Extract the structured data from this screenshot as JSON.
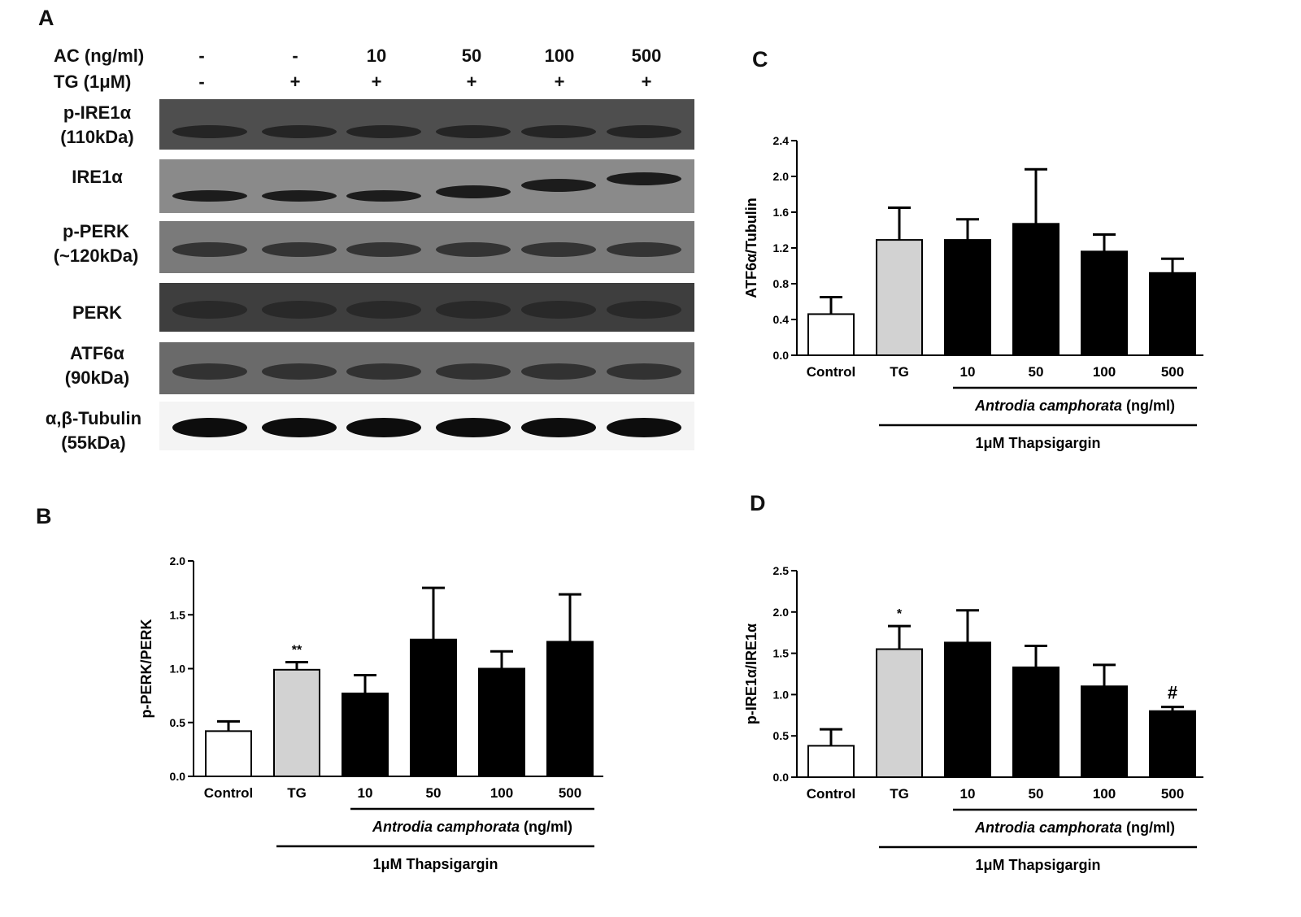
{
  "panels": {
    "a": "A",
    "b": "B",
    "c": "C",
    "d": "D"
  },
  "blot": {
    "ac_label": "AC (ng/ml)",
    "tg_label": "TG  (1μM)",
    "ac_values": [
      "-",
      "-",
      "10",
      "50",
      "100",
      "500"
    ],
    "tg_values": [
      "-",
      "+",
      "+",
      "+",
      "+",
      "+"
    ],
    "rows": [
      {
        "line1": "p-IRE1α",
        "line2": "(110kDa)"
      },
      {
        "line1": "IRE1α",
        "line2": ""
      },
      {
        "line1": "p-PERK",
        "line2": "(~120kDa)"
      },
      {
        "line1": "PERK",
        "line2": ""
      },
      {
        "line1": "ATF6α",
        "line2": "(90kDa)"
      },
      {
        "line1": "α,β-Tubulin",
        "line2": "(55kDa)"
      }
    ]
  },
  "chart_data": [
    {
      "panel": "B",
      "type": "bar",
      "categories": [
        "Control",
        "TG",
        "10",
        "50",
        "100",
        "500"
      ],
      "values": [
        0.42,
        0.99,
        0.77,
        1.27,
        1.0,
        1.25
      ],
      "errors": [
        0.09,
        0.07,
        0.17,
        0.48,
        0.16,
        0.44
      ],
      "bar_colors": [
        "#ffffff",
        "#d2d2d2",
        "#000000",
        "#000000",
        "#000000",
        "#000000"
      ],
      "annotations": [
        "",
        "**",
        "",
        "",
        "",
        ""
      ],
      "ylabel": "p-PERK/PERK",
      "ylim": [
        0,
        2.0
      ],
      "yticks": [
        "0.0",
        "0.5",
        "1.0",
        "1.5",
        "2.0"
      ],
      "group_label_1": "Antrodia camphorata",
      "group_label_1_unit": " (ng/ml)",
      "group_label_2": "1μM Thapsigargin"
    },
    {
      "panel": "C",
      "type": "bar",
      "categories": [
        "Control",
        "TG",
        "10",
        "50",
        "100",
        "500"
      ],
      "values": [
        0.46,
        1.29,
        1.29,
        1.47,
        1.16,
        0.92
      ],
      "errors": [
        0.19,
        0.36,
        0.23,
        0.61,
        0.19,
        0.16
      ],
      "bar_colors": [
        "#ffffff",
        "#d2d2d2",
        "#000000",
        "#000000",
        "#000000",
        "#000000"
      ],
      "annotations": [
        "",
        "",
        "",
        "",
        "",
        ""
      ],
      "ylabel": "ATF6α/Tubulin",
      "ylim": [
        0,
        2.4
      ],
      "yticks": [
        "0.0",
        "0.4",
        "0.8",
        "1.2",
        "1.6",
        "2.0",
        "2.4"
      ],
      "group_label_1": "Antrodia camphorata",
      "group_label_1_unit": " (ng/ml)",
      "group_label_2": "1μM Thapsigargin"
    },
    {
      "panel": "D",
      "type": "bar",
      "categories": [
        "Control",
        "TG",
        "10",
        "50",
        "100",
        "500"
      ],
      "values": [
        0.38,
        1.55,
        1.63,
        1.33,
        1.1,
        0.8
      ],
      "errors": [
        0.2,
        0.28,
        0.39,
        0.26,
        0.26,
        0.05
      ],
      "bar_colors": [
        "#ffffff",
        "#d2d2d2",
        "#000000",
        "#000000",
        "#000000",
        "#000000"
      ],
      "annotations": [
        "",
        "*",
        "",
        "",
        "",
        "#"
      ],
      "ylabel": "p-IRE1α/IRE1α",
      "ylim": [
        0,
        2.5
      ],
      "yticks": [
        "0.0",
        "0.5",
        "1.0",
        "1.5",
        "2.0",
        "2.5"
      ],
      "group_label_1": "Antrodia camphorata",
      "group_label_1_unit": " (ng/ml)",
      "group_label_2": "1μM Thapsigargin"
    }
  ]
}
